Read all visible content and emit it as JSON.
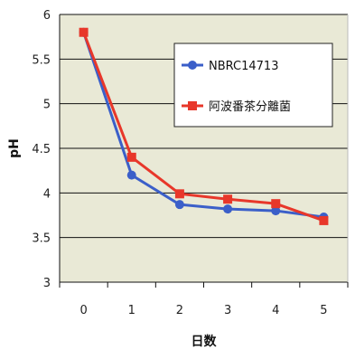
{
  "chart_data": {
    "type": "line",
    "xlabel": "日数",
    "ylabel": "pH",
    "x": [
      0,
      1,
      2,
      3,
      4,
      5
    ],
    "ylim": [
      3,
      6
    ],
    "yticks": [
      "3",
      "3.5",
      "4",
      "4.5",
      "5",
      "5.5",
      "6"
    ],
    "xticks": [
      "0",
      "1",
      "2",
      "3",
      "4",
      "5"
    ],
    "grid": true,
    "legend_position": "top-right",
    "series": [
      {
        "name": "NBRC14713",
        "marker": "circle",
        "color": "#3b5fc9",
        "values": [
          5.8,
          4.2,
          3.87,
          3.82,
          3.8,
          3.73
        ]
      },
      {
        "name": "阿波番茶分離菌",
        "marker": "square",
        "color": "#e8372a",
        "values": [
          5.8,
          4.4,
          3.99,
          3.93,
          3.88,
          3.69
        ]
      }
    ]
  },
  "style": {
    "plot_background": "#e9e9d6",
    "grid_color": "#111111"
  }
}
